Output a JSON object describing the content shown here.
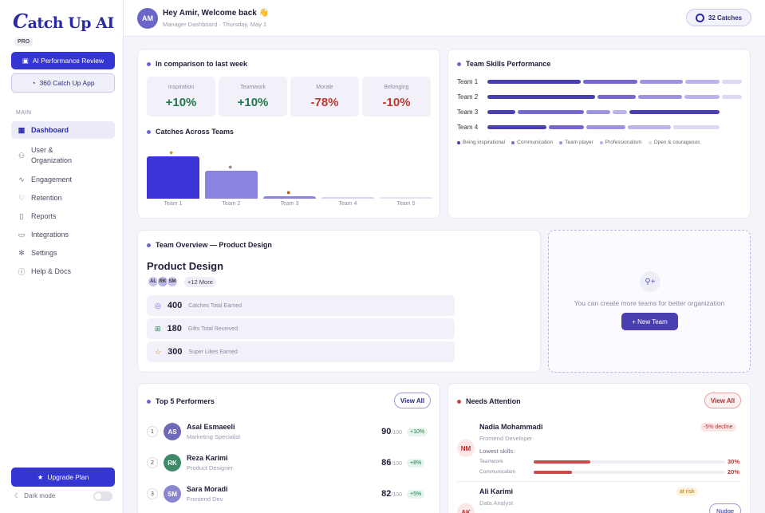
{
  "sidebar": {
    "logo": "atch Up AI",
    "logo_c": "C",
    "pro": "PRO",
    "ai_review": "AI Performance Review",
    "app": "360 Catch Up App",
    "main_label": "MAIN",
    "nav": [
      {
        "label": "Dashboard",
        "icon": "grid-icon"
      },
      {
        "label": "User &\nOrganization",
        "icon": "users-icon"
      },
      {
        "label": "Engagement",
        "icon": "activity-icon"
      },
      {
        "label": "Retention",
        "icon": "heart-icon"
      },
      {
        "label": "Reports",
        "icon": "file-icon"
      },
      {
        "label": "Integrations",
        "icon": "monitor-icon"
      },
      {
        "label": "Settings",
        "icon": "gear-icon"
      },
      {
        "label": "Help & Docs",
        "icon": "info-icon"
      }
    ],
    "upgrade": "Upgrade Plan",
    "dark_mode": "Dark mode"
  },
  "header": {
    "avatar": "AM",
    "greeting": "Hey Amir, Welcome back 👋",
    "subtitle": "Manager Dashboard · Thursday, May 1",
    "catches": "32 Catches"
  },
  "comparison": {
    "title": "In comparison to last week",
    "stats": [
      {
        "label": "Inspiration",
        "value": "+10%",
        "color": "#1f7a4c"
      },
      {
        "label": "Teamwork",
        "value": "+10%",
        "color": "#1f7a4c"
      },
      {
        "label": "Morale",
        "value": "-78%",
        "color": "#c0392b"
      },
      {
        "label": "Belonging",
        "value": "-10%",
        "color": "#c0392b"
      }
    ],
    "catches_title": "Catches Across Teams"
  },
  "chart_data": {
    "type": "bar",
    "categories": [
      "Team 1",
      "Team 2",
      "Team 3",
      "Team 4",
      "Team 5"
    ],
    "values": [
      52,
      34,
      3,
      2,
      2
    ],
    "colors": [
      "#3b33d6",
      "#8a84e0",
      "#8a84e0",
      "#d6d4f2",
      "#e4e3f4"
    ]
  },
  "skills": {
    "title": "Team Skills Performance",
    "teams": [
      "Team 1",
      "Team 2",
      "Team 3",
      "Team 4"
    ],
    "legend": [
      "Being inspirational",
      "Communication",
      "Team player",
      "Professionalism",
      "Open & courageous"
    ],
    "legend_colors": [
      "#4a3fb0",
      "#7468d0",
      "#9c94e0",
      "#bab4ea",
      "#dcd9f4"
    ]
  },
  "overview": {
    "title": "Team Overview — Product Design",
    "team_name": "Product Design",
    "avatars": [
      "AL",
      "RK",
      "SM"
    ],
    "more": "+12 More",
    "rows": [
      {
        "num": "400",
        "text": "Catches Total Earned",
        "icon": "target-icon",
        "color": "#6a6ad0"
      },
      {
        "num": "180",
        "text": "Gifts Total Received",
        "icon": "gift-icon",
        "color": "#1f8a5c"
      },
      {
        "num": "300",
        "text": "Super Likes Earned",
        "icon": "star-icon",
        "color": "#c98a10"
      }
    ]
  },
  "new_team": {
    "text": "You can create more teams for better organization",
    "button": "+ New Team"
  },
  "top": {
    "title": "Top 5 Performers",
    "view_all": "View All",
    "out_of": "/100",
    "rows": [
      {
        "rank": "1",
        "init": "AS",
        "name": "Asal Esmaeeli",
        "role": "Marketing Specialist",
        "score": "90",
        "delta": "+10%",
        "color": "#6e6ab8"
      },
      {
        "rank": "2",
        "init": "RK",
        "name": "Reza Karimi",
        "role": "Product Designer",
        "score": "86",
        "delta": "+8%",
        "color": "#3f8a68"
      },
      {
        "rank": "3",
        "init": "SM",
        "name": "Sara Moradi",
        "role": "Frontend Dev",
        "score": "82",
        "delta": "+5%",
        "color": "#8a86d0"
      }
    ]
  },
  "attention": {
    "title": "Needs Attention",
    "view_all": "View All",
    "p1": {
      "init": "NM",
      "name": "Nadia Mohammadi",
      "role": "Frontend Developer",
      "badge": "-5% decline",
      "lowest": "Lowest skills:",
      "skills": [
        {
          "label": "Teamwork",
          "pct": "30%",
          "v": 30
        },
        {
          "label": "Communication",
          "pct": "20%",
          "v": 20
        }
      ]
    },
    "p2": {
      "init": "AK",
      "name": "Ali Karimi",
      "role": "Data Analyst",
      "badge": "at risk",
      "nudge": "Nudge"
    }
  }
}
